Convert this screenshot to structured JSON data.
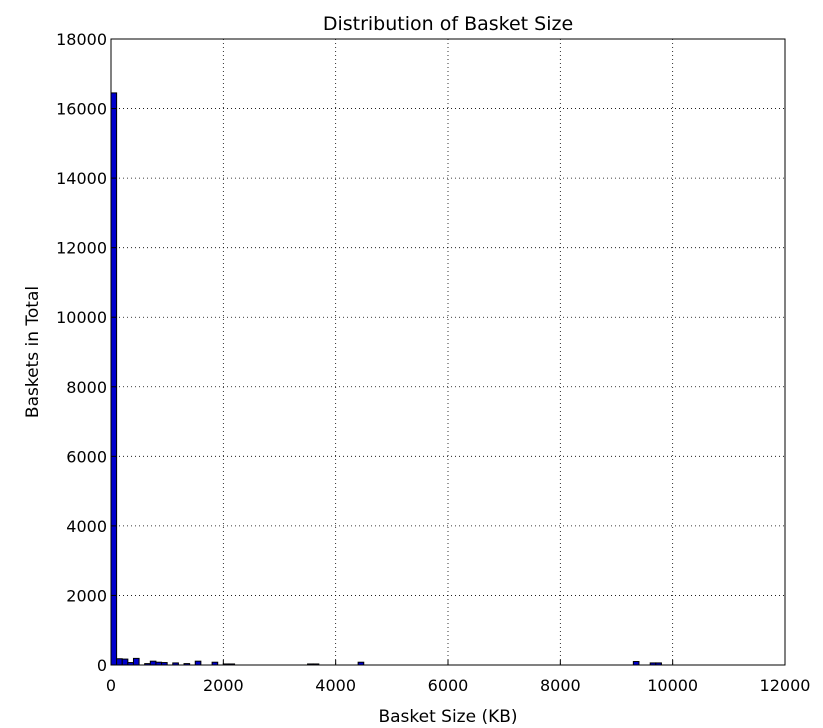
{
  "chart_data": {
    "type": "bar",
    "title": "Distribution of Basket Size",
    "xlabel": "Basket Size (KB)",
    "ylabel": "Baskets in Total",
    "xlim": [
      0,
      12000
    ],
    "ylim": [
      0,
      18000
    ],
    "x_ticks": [
      "0",
      "2000",
      "4000",
      "6000",
      "8000",
      "10000",
      "12000"
    ],
    "y_ticks": [
      "0",
      "2000",
      "4000",
      "6000",
      "8000",
      "10000",
      "12000",
      "14000",
      "16000",
      "18000"
    ],
    "grid": true,
    "bar_color": "#0000cc",
    "bins": [
      {
        "x0": 0,
        "x1": 100,
        "count": 16450
      },
      {
        "x0": 100,
        "x1": 200,
        "count": 180
      },
      {
        "x0": 200,
        "x1": 300,
        "count": 170
      },
      {
        "x0": 300,
        "x1": 400,
        "count": 70
      },
      {
        "x0": 400,
        "x1": 500,
        "count": 190
      },
      {
        "x0": 600,
        "x1": 700,
        "count": 40
      },
      {
        "x0": 700,
        "x1": 800,
        "count": 110
      },
      {
        "x0": 800,
        "x1": 900,
        "count": 80
      },
      {
        "x0": 900,
        "x1": 1000,
        "count": 70
      },
      {
        "x0": 1100,
        "x1": 1200,
        "count": 60
      },
      {
        "x0": 1300,
        "x1": 1400,
        "count": 40
      },
      {
        "x0": 1500,
        "x1": 1600,
        "count": 110
      },
      {
        "x0": 1800,
        "x1": 1900,
        "count": 80
      },
      {
        "x0": 2000,
        "x1": 2100,
        "count": 30
      },
      {
        "x0": 2100,
        "x1": 2200,
        "count": 30
      },
      {
        "x0": 3500,
        "x1": 3600,
        "count": 30
      },
      {
        "x0": 3600,
        "x1": 3700,
        "count": 30
      },
      {
        "x0": 4400,
        "x1": 4500,
        "count": 80
      },
      {
        "x0": 9300,
        "x1": 9400,
        "count": 100
      },
      {
        "x0": 9600,
        "x1": 9700,
        "count": 60
      },
      {
        "x0": 9700,
        "x1": 9800,
        "count": 60
      }
    ]
  }
}
